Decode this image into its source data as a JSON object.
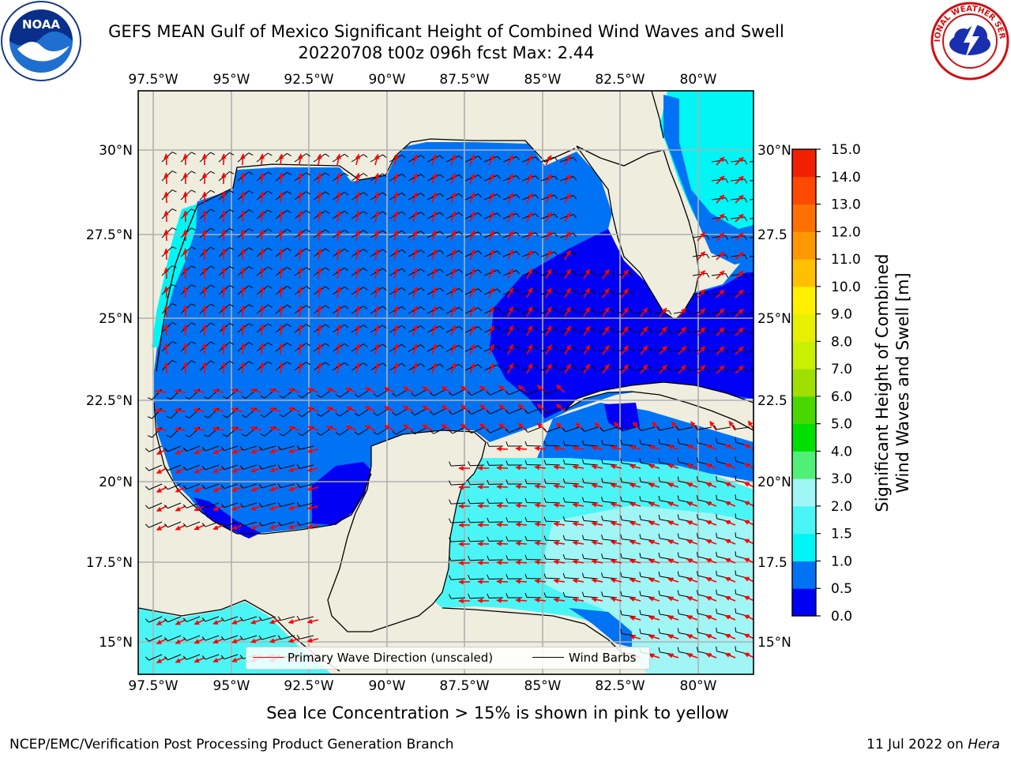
{
  "header": {
    "title_line1": "GEFS MEAN Gulf of Mexico Significant Height of Combined Wind Waves and Swell",
    "title_line2": "20220708 t00z 096h fcst   Max: 2.44"
  },
  "logos": {
    "left": {
      "icon": "noaa-logo",
      "text": "NOAA"
    },
    "right": {
      "icon": "nws-logo",
      "text": "NATIONAL WEATHER SERVICE"
    }
  },
  "map": {
    "lon_labels": [
      "97.5°W",
      "95°W",
      "92.5°W",
      "90°W",
      "87.5°W",
      "85°W",
      "82.5°W",
      "80°W"
    ],
    "lat_labels_left": [
      "30°N",
      "27.5°N",
      "25°N",
      "22.5°N",
      "20°N",
      "17.5°N",
      "15°N"
    ],
    "lat_labels_right": [
      "30°N",
      "27.5",
      "25°N",
      "22.5",
      "20°N",
      "17.5",
      "15°N"
    ],
    "colors": {
      "land": "#efedde",
      "deep_blue": "#0000f5",
      "mid_blue": "#0073f5",
      "cyan": "#00f5f5",
      "light_cyan": "#4cf5f5",
      "pale_cyan": "#a0f5f5",
      "wave_arrow": "#ff0000",
      "barb": "#000000"
    }
  },
  "legend": {
    "wave_label": "Primary Wave Direction (unscaled)",
    "barb_label": "Wind Barbs"
  },
  "colorbar": {
    "label_line1": "Significant Height of Combined",
    "label_line2": "Wind Waves and Swell [m]",
    "ticks": [
      "15.0",
      "14.0",
      "13.0",
      "12.0",
      "11.0",
      "10.0",
      "9.0",
      "8.0",
      "7.0",
      "6.0",
      "5.0",
      "4.0",
      "3.0",
      "2.0",
      "1.5",
      "1.0",
      "0.5",
      "0.0"
    ],
    "colors": [
      "#0000f5",
      "#0073f5",
      "#00f5f5",
      "#4cf5f5",
      "#a0f5f5",
      "#50f078",
      "#00e000",
      "#48d800",
      "#a0e000",
      "#c8f000",
      "#e8f000",
      "#fff000",
      "#ffc000",
      "#ff9800",
      "#ff7000",
      "#ff4800",
      "#f02000",
      "#ff0000"
    ]
  },
  "bottom_note": "Sea Ice Concentration > 15% is shown in pink to yellow",
  "footer": {
    "left": "NCEP/EMC/Verification Post Processing Product Generation Branch",
    "right_prefix": "11 Jul 2022 on ",
    "right_host": "Hera"
  }
}
